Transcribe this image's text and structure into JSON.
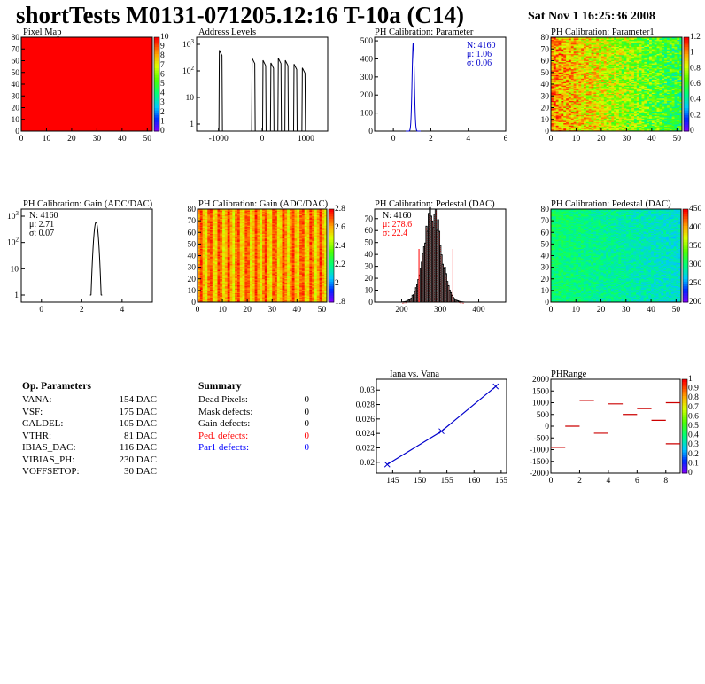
{
  "header": {
    "title": "shortTests M0131-071205.12:16 T-10a (C14)",
    "date": "Sat Nov  1 16:25:36 2008"
  },
  "op_params": {
    "heading": "Op. Parameters",
    "items": [
      {
        "key": "VANA:",
        "value": "154 DAC"
      },
      {
        "key": "VSF:",
        "value": "175 DAC"
      },
      {
        "key": "CALDEL:",
        "value": "105 DAC"
      },
      {
        "key": "VTHR:",
        "value": "81 DAC"
      },
      {
        "key": "IBIAS_DAC:",
        "value": "116 DAC"
      },
      {
        "key": "VIBIAS_PH:",
        "value": "230 DAC"
      },
      {
        "key": "VOFFSETOP:",
        "value": "30 DAC"
      }
    ]
  },
  "summary": {
    "heading": "Summary",
    "items": [
      {
        "key": "Dead Pixels:",
        "value": "0",
        "color": "#000000"
      },
      {
        "key": "Mask defects:",
        "value": "0",
        "color": "#000000"
      },
      {
        "key": "Gain defects:",
        "value": "0",
        "color": "#000000"
      },
      {
        "key": "Ped. defects:",
        "value": "0",
        "color": "#ff0000"
      },
      {
        "key": "Par1 defects:",
        "value": "0",
        "color": "#0000ff"
      }
    ]
  },
  "chart_data": [
    {
      "id": "pixelmap",
      "type": "heatmap",
      "title": "Pixel Map",
      "xlim": [
        0,
        52
      ],
      "ylim": [
        0,
        80
      ],
      "xticks": [
        "0",
        "10",
        "20",
        "30",
        "40",
        "50"
      ],
      "yticks": [
        "0",
        "10",
        "20",
        "30",
        "40",
        "50",
        "60",
        "70",
        "80"
      ],
      "fill": "#ff0000",
      "colorbar_labels": [
        "0",
        "1",
        "2",
        "3",
        "4",
        "5",
        "6",
        "7",
        "8",
        "9",
        "10"
      ]
    },
    {
      "id": "addr",
      "type": "bar",
      "title": "Address Levels",
      "log_y": true,
      "xlim": [
        -1500,
        1500
      ],
      "xticks": [
        "-1000",
        "0",
        "1000"
      ],
      "yticks": [
        "1",
        "10",
        "10^2",
        "10^3"
      ],
      "peaks": [
        {
          "x": -950,
          "h": 600
        },
        {
          "x": -200,
          "h": 300
        },
        {
          "x": 50,
          "h": 250
        },
        {
          "x": 230,
          "h": 200
        },
        {
          "x": 400,
          "h": 300
        },
        {
          "x": 560,
          "h": 250
        },
        {
          "x": 760,
          "h": 180
        },
        {
          "x": 950,
          "h": 130
        }
      ]
    },
    {
      "id": "phpar",
      "type": "bar",
      "title": "PH Calibration: Parameter",
      "xlim": [
        -1,
        6
      ],
      "ylim": [
        0,
        520
      ],
      "xticks": [
        "0",
        "2",
        "4",
        "6"
      ],
      "yticks": [
        "0",
        "100",
        "200",
        "300",
        "400",
        "500"
      ],
      "stats": [
        "N: 4160",
        "μ: 1.06",
        "σ: 0.06"
      ],
      "color": "#0000cc",
      "mean": 1.06,
      "sigma": 0.06,
      "peak": 490
    },
    {
      "id": "phpar1",
      "type": "heatmap",
      "title": "PH Calibration: Parameter1",
      "xlim": [
        0,
        52
      ],
      "ylim": [
        0,
        80
      ],
      "xticks": [
        "0",
        "10",
        "20",
        "30",
        "40",
        "50"
      ],
      "yticks": [
        "0",
        "10",
        "20",
        "30",
        "40",
        "50",
        "60",
        "70",
        "80"
      ],
      "colorbar_labels": [
        "0",
        "0.2",
        "0.4",
        "0.6",
        "0.8",
        "1",
        "1.2"
      ],
      "pattern": "left-hot"
    },
    {
      "id": "gain1d",
      "type": "bar",
      "title": "PH Calibration: Gain (ADC/DAC)",
      "log_y": true,
      "xlim": [
        -1,
        5.5
      ],
      "xticks": [
        "0",
        "2",
        "4"
      ],
      "yticks": [
        "1",
        "10",
        "10^2",
        "10^3"
      ],
      "stats": [
        "N: 4160",
        "μ: 2.71",
        "σ: 0.07"
      ],
      "mean": 2.71,
      "sigma": 0.07,
      "peak": 600
    },
    {
      "id": "gain2d",
      "type": "heatmap",
      "title": "PH Calibration: Gain (ADC/DAC)",
      "xlim": [
        0,
        52
      ],
      "ylim": [
        0,
        80
      ],
      "xticks": [
        "0",
        "10",
        "20",
        "30",
        "40",
        "50"
      ],
      "yticks": [
        "0",
        "10",
        "20",
        "30",
        "40",
        "50",
        "60",
        "70",
        "80"
      ],
      "colorbar_labels": [
        "1.8",
        "2",
        "2.2",
        "2.4",
        "2.6",
        "2.8"
      ],
      "pattern": "warm"
    },
    {
      "id": "ped1d",
      "type": "bar",
      "title": "PH Calibration: Pedestal (DAC)",
      "xlim": [
        130,
        470
      ],
      "ylim": [
        0,
        78
      ],
      "xticks": [
        "200",
        "300",
        "400"
      ],
      "yticks": [
        "0",
        "10",
        "20",
        "30",
        "40",
        "50",
        "60",
        "70"
      ],
      "stats": [
        "N: 4160",
        "μ: 278.6",
        "σ: 22.4"
      ],
      "stat_colors": [
        "#000000",
        "#ff0000",
        "#ff0000"
      ],
      "mean": 278.6,
      "sigma": 22.4,
      "peak": 74,
      "cut_lines": [
        245,
        333
      ]
    },
    {
      "id": "ped2d",
      "type": "heatmap",
      "title": "PH Calibration: Pedestal (DAC)",
      "xlim": [
        0,
        52
      ],
      "ylim": [
        0,
        80
      ],
      "xticks": [
        "0",
        "10",
        "20",
        "30",
        "40",
        "50"
      ],
      "yticks": [
        "0",
        "10",
        "20",
        "30",
        "40",
        "50",
        "60",
        "70",
        "80"
      ],
      "colorbar_labels": [
        "200",
        "250",
        "300",
        "350",
        "400",
        "450"
      ],
      "pattern": "cool"
    },
    {
      "id": "iana",
      "type": "line",
      "title": "Iana vs. Vana",
      "xlim": [
        142,
        166
      ],
      "ylim": [
        0.0185,
        0.0315
      ],
      "xticks": [
        "145",
        "150",
        "155",
        "160",
        "165"
      ],
      "yticks": [
        "0.02",
        "0.022",
        "0.024",
        "0.026",
        "0.028",
        "0.03"
      ],
      "x": [
        144,
        154,
        164
      ],
      "y": [
        0.0197,
        0.0243,
        0.0305
      ],
      "color": "#0000cc"
    },
    {
      "id": "phrange",
      "type": "heatmap",
      "title": "PHRange",
      "xlim": [
        0,
        9
      ],
      "ylim": [
        -2000,
        2000
      ],
      "xticks": [
        "0",
        "2",
        "4",
        "6",
        "8"
      ],
      "yticks": [
        "2000",
        "1500",
        "1000",
        "500",
        "0",
        "-500",
        "-1000",
        "-1500",
        "-2000"
      ],
      "colorbar_labels": [
        "0",
        "0.1",
        "0.2",
        "0.3",
        "0.4",
        "0.5",
        "0.6",
        "0.7",
        "0.8",
        "0.9",
        "1"
      ],
      "segments": [
        {
          "x": 0,
          "y": -900
        },
        {
          "x": 1,
          "y": 0
        },
        {
          "x": 2,
          "y": 1100
        },
        {
          "x": 3,
          "y": -300
        },
        {
          "x": 4,
          "y": 950
        },
        {
          "x": 5,
          "y": 500
        },
        {
          "x": 6,
          "y": 750
        },
        {
          "x": 7,
          "y": 250
        },
        {
          "x": 8,
          "y": 1000
        },
        {
          "x": 8,
          "y": -750
        }
      ]
    }
  ]
}
